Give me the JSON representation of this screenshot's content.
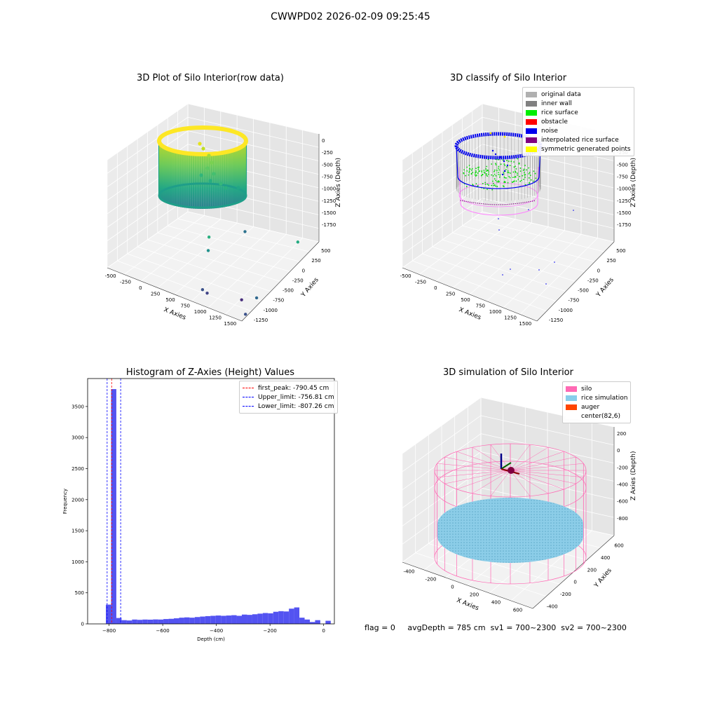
{
  "page_title": "CWWPD02 2026-02-09 09:25:45",
  "status": {
    "flag": "flag = 0",
    "avg_depth": "avgDepth = 785 cm",
    "sv1": "sv1 = 700~2300",
    "sv2": "sv2 = 700~2300"
  },
  "chart_data": [
    {
      "type": "scatter",
      "title": "3D Plot of Silo Interior(row data)",
      "xlabel": "X Axies",
      "ylabel": "Y Axies",
      "zlabel": "Z Axies (Depth)",
      "x_ticks": [
        "-500",
        "-250",
        "0",
        "250",
        "500",
        "750",
        "1000",
        "1250",
        "1500"
      ],
      "y_ticks": [
        "500",
        "250",
        "0",
        "-250",
        "-500",
        "-750",
        "-1000",
        "-1250"
      ],
      "z_ticks": [
        "0",
        "-250",
        "-500",
        "-750",
        "-1000",
        "-1250",
        "-1500",
        "-1750"
      ],
      "outlier_points": [
        {
          "x": 700,
          "y": -900,
          "z": -1750
        },
        {
          "x": 800,
          "y": -950,
          "z": -1740
        },
        {
          "x": 1250,
          "y": -850,
          "z": -1700
        },
        {
          "x": 1350,
          "y": -650,
          "z": -1720
        },
        {
          "x": 1400,
          "y": -1000,
          "z": -1800
        },
        {
          "x": 600,
          "y": -600,
          "z": -1300
        },
        {
          "x": 550,
          "y": -500,
          "z": -1150
        },
        {
          "x": 1500,
          "y": 100,
          "z": -1100
        },
        {
          "x": 900,
          "y": -200,
          "z": -1050
        }
      ]
    },
    {
      "type": "scatter",
      "title": "3D classify of Silo Interior",
      "xlabel": "X Axies",
      "ylabel": "Y Axies",
      "zlabel": "Z Axies (Depth)",
      "x_ticks": [
        "-500",
        "-250",
        "0",
        "250",
        "500",
        "750",
        "1000",
        "1250",
        "1500"
      ],
      "y_ticks": [
        "500",
        "250",
        "0",
        "-250",
        "-500",
        "-750",
        "-1000",
        "-1250"
      ],
      "z_ticks": [
        "0",
        "-250",
        "-500",
        "-750",
        "-1000",
        "-1250",
        "-1500",
        "-1750"
      ],
      "legend": [
        {
          "label": "original data",
          "color": "#b0b0b0"
        },
        {
          "label": "inner wall",
          "color": "#808080"
        },
        {
          "label": "rice surface",
          "color": "#00ee00"
        },
        {
          "label": "obstacle",
          "color": "#ff0000"
        },
        {
          "label": "noise",
          "color": "#0000ee"
        },
        {
          "label": "interpolated rice surface",
          "color": "#800080"
        },
        {
          "label": "symmetric generated points",
          "color": "#ffff00"
        }
      ]
    },
    {
      "type": "bar",
      "title": "Histogram of Z-Axies (Height) Values",
      "xlabel": "Depth (cm)",
      "ylabel": "Frequency",
      "xlim": [
        -880,
        40
      ],
      "ylim": [
        0,
        3950
      ],
      "x_ticks": [
        -800,
        -600,
        -400,
        -200,
        0
      ],
      "y_ticks": [
        0,
        500,
        1000,
        1500,
        2000,
        2500,
        3000,
        3500
      ],
      "bin_start": -812,
      "bin_width": 19.5,
      "values": [
        310,
        3780,
        95,
        60,
        55,
        70,
        65,
        70,
        68,
        72,
        70,
        78,
        82,
        90,
        100,
        105,
        100,
        110,
        118,
        125,
        130,
        135,
        130,
        135,
        140,
        130,
        150,
        145,
        155,
        165,
        175,
        170,
        195,
        205,
        200,
        245,
        265,
        100,
        70,
        30,
        60,
        0,
        50
      ],
      "lines": [
        {
          "label": "first_peak: -790.45 cm",
          "x": -790.45,
          "color": "#ff0000"
        },
        {
          "label": "Upper_limit: -756.81 cm",
          "x": -756.81,
          "color": "#0000ff"
        },
        {
          "label": "Lower_limit: -807.26 cm",
          "x": -807.26,
          "color": "#0000ff"
        }
      ],
      "bar_color": "#4a4af0"
    },
    {
      "type": "scatter",
      "title": "3D simulation of Silo Interior",
      "xlabel": "X Axies",
      "ylabel": "Y Axies",
      "zlabel": "Z Axies (Depth)",
      "x_ticks": [
        "-400",
        "-200",
        "0",
        "200",
        "400",
        "600"
      ],
      "y_ticks": [
        "600",
        "400",
        "200",
        "0",
        "-200",
        "-400"
      ],
      "z_ticks": [
        "200",
        "0",
        "-200",
        "-400",
        "-600",
        "-800"
      ],
      "legend": [
        {
          "label": "silo",
          "color": "#ff69b4"
        },
        {
          "label": "rice simulation",
          "color": "#87ceeb"
        },
        {
          "label": "auger",
          "color": "#ff4500"
        },
        {
          "label": "center(82,6)",
          "color": "#ffffff"
        }
      ]
    }
  ]
}
